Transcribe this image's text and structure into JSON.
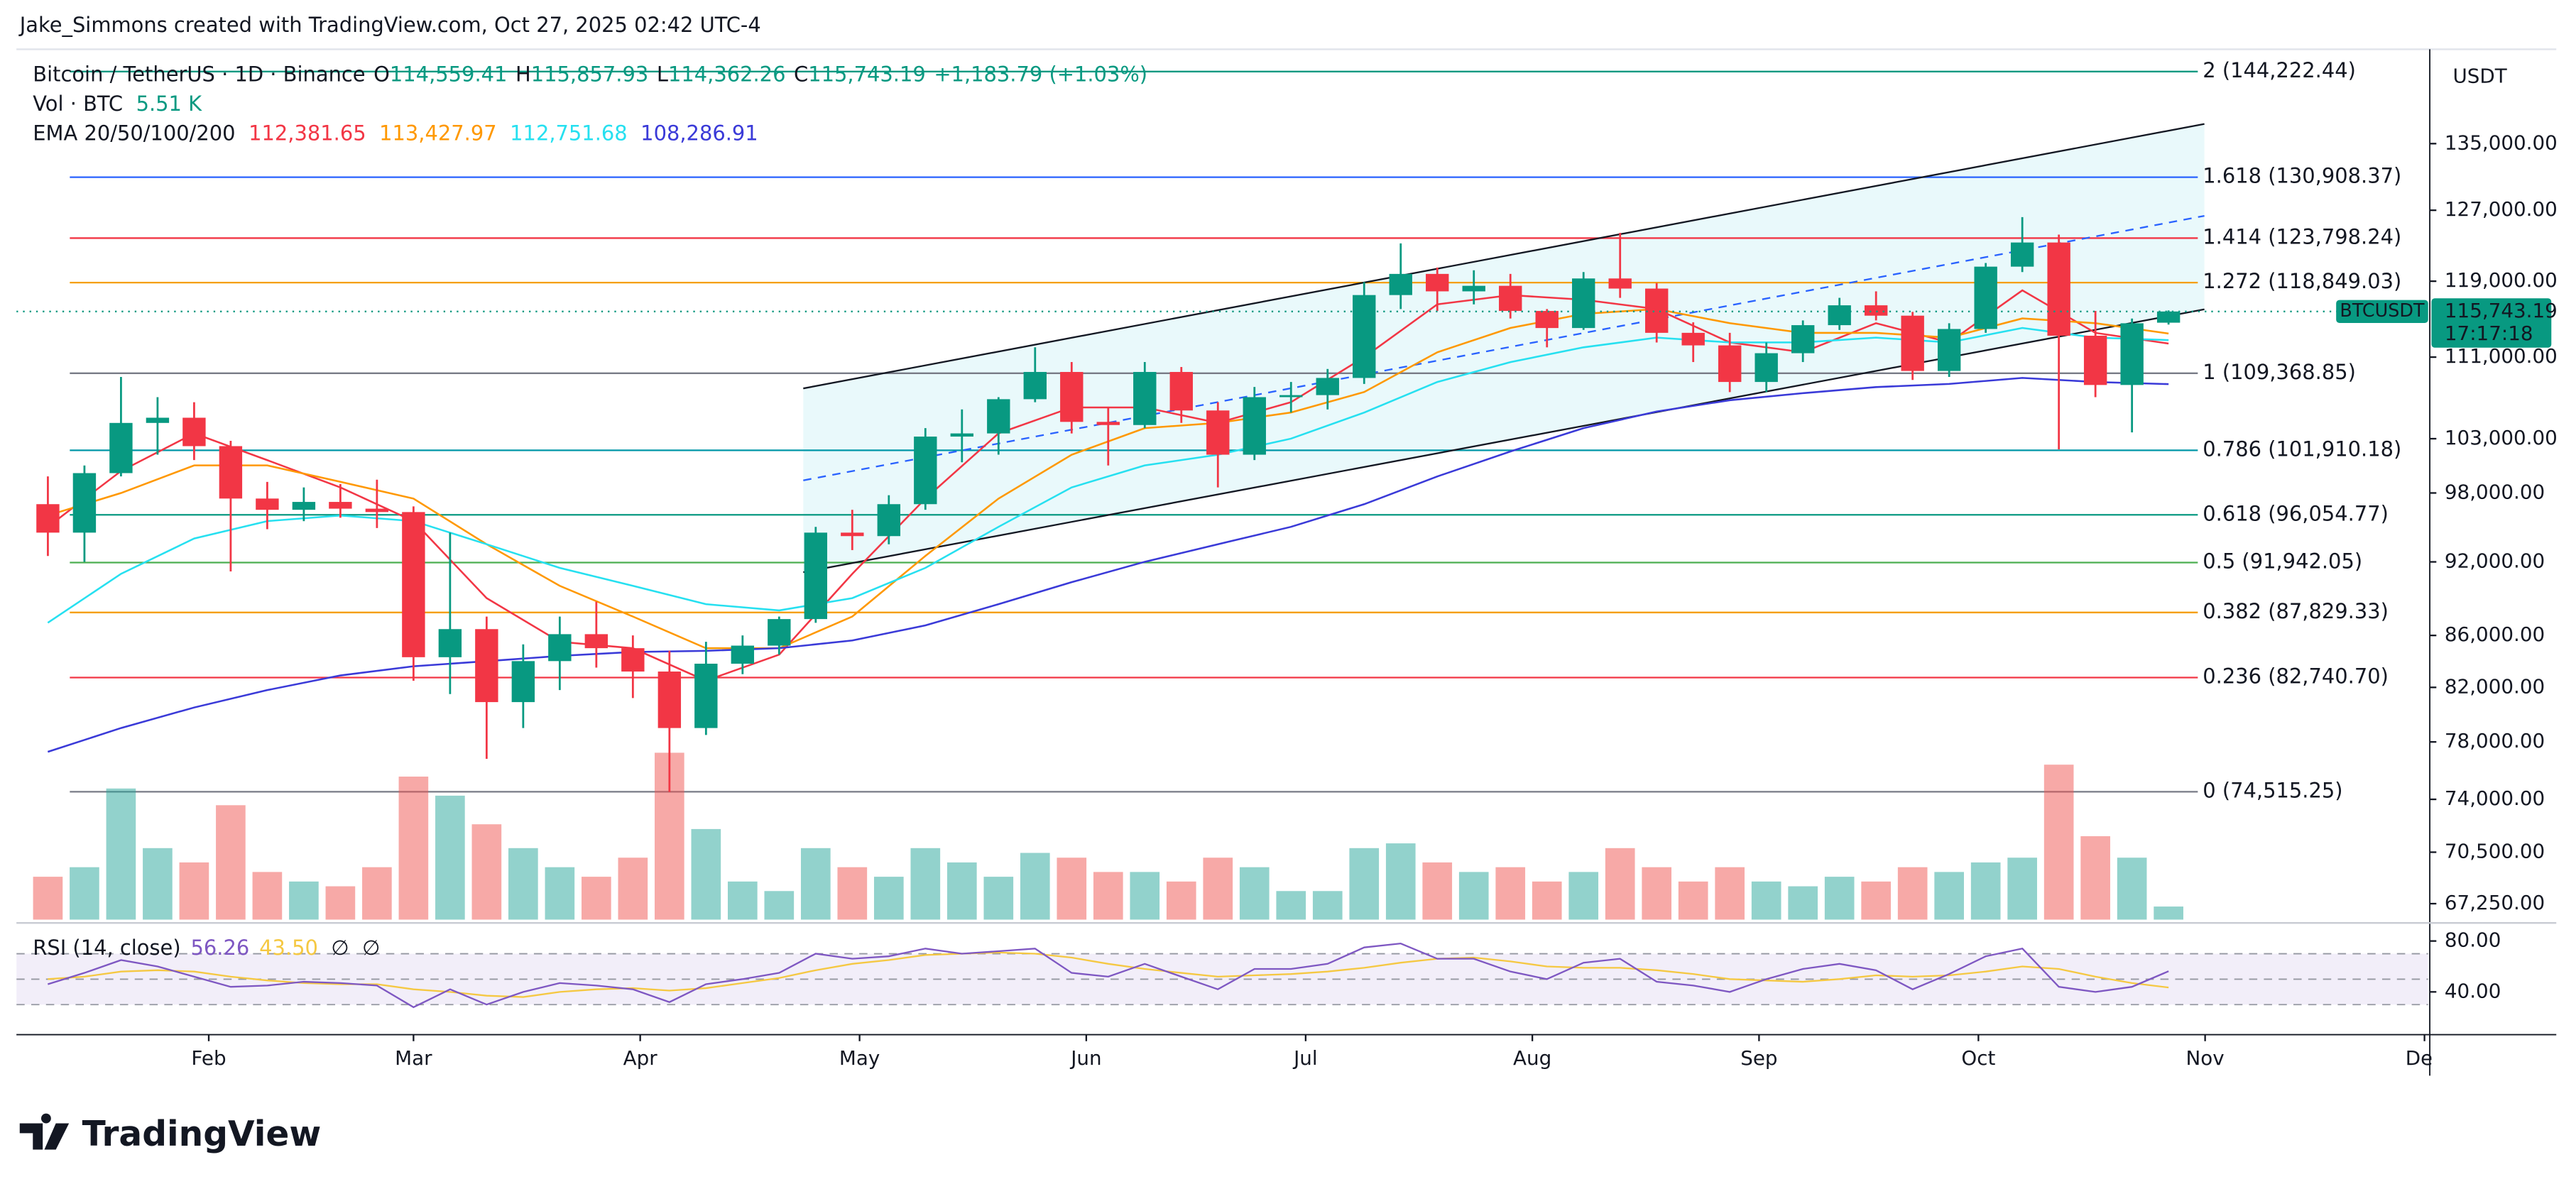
{
  "header": {
    "credit": "Jake_Simmons created with TradingView.com, Oct 27, 2025 02:42 UTC-4",
    "symbol": "Bitcoin / TetherUS · 1D · Binance",
    "ohlc": [
      {
        "key": "O",
        "value": 114559.41,
        "label": "114,559.41"
      },
      {
        "key": "H",
        "value": 115857.93,
        "label": "115,857.93"
      },
      {
        "key": "L",
        "value": 114362.26,
        "label": "114,362.26"
      },
      {
        "key": "C",
        "value": 115743.19,
        "label": "115,743.19"
      }
    ],
    "change": {
      "value": 1183.79,
      "label": "+1,183.79 (+1.03%)"
    },
    "volume": {
      "title": "Vol · BTC",
      "value": 5510,
      "label": "5.51 K"
    },
    "ema_title": "EMA 20/50/100/200"
  },
  "chart_data": {
    "type": "candlestick",
    "currency": "USDT",
    "x": [
      9,
      14,
      19,
      24,
      29,
      34,
      39,
      44,
      49,
      54,
      59,
      64,
      69,
      74,
      79,
      84,
      89,
      94,
      99,
      104,
      109,
      114,
      119,
      124,
      129,
      134,
      139,
      144,
      149,
      154,
      159,
      164,
      169,
      174,
      179,
      184,
      189,
      194,
      199,
      204,
      209,
      214,
      219,
      224,
      229,
      234,
      239,
      244,
      249,
      254,
      259,
      264,
      269,
      274,
      279,
      284,
      289,
      294,
      299
    ],
    "open": [
      97000,
      94500,
      99800,
      104500,
      105000,
      102300,
      97500,
      96500,
      97200,
      96600,
      96300,
      84300,
      86500,
      80900,
      84000,
      86100,
      85000,
      83200,
      79000,
      83800,
      85200,
      87300,
      94500,
      94200,
      97000,
      103200,
      103500,
      106800,
      109500,
      104600,
      104300,
      109500,
      105700,
      101500,
      107000,
      107200,
      108900,
      117500,
      119800,
      117900,
      118500,
      115800,
      114000,
      119300,
      118200,
      113500,
      112200,
      108500,
      111400,
      114300,
      116400,
      115300,
      109600,
      113900,
      120600,
      123300,
      113200,
      108200,
      114559.41
    ],
    "high": [
      99500,
      100500,
      109000,
      107000,
      106500,
      102800,
      99000,
      98500,
      98800,
      99200,
      96800,
      94500,
      87500,
      85300,
      87500,
      88700,
      86000,
      84800,
      85500,
      86000,
      87500,
      95000,
      96500,
      97800,
      104000,
      105800,
      107000,
      112000,
      110500,
      106000,
      110500,
      110000,
      106500,
      108000,
      108500,
      109800,
      118900,
      123200,
      120500,
      120200,
      119800,
      116000,
      120000,
      124400,
      118800,
      114600,
      113500,
      112500,
      114800,
      117200,
      117900,
      115700,
      114500,
      121000,
      126200,
      124200,
      115800,
      115000,
      115857.93
    ],
    "low": [
      92500,
      92000,
      99500,
      101500,
      101000,
      91200,
      94800,
      95500,
      95800,
      94900,
      82500,
      81500,
      76800,
      79000,
      81800,
      83500,
      81200,
      74500,
      78500,
      83000,
      84500,
      87000,
      93000,
      93500,
      96500,
      100800,
      101500,
      106500,
      103500,
      100500,
      104000,
      104500,
      98500,
      101000,
      105500,
      105800,
      108300,
      116000,
      115800,
      116500,
      115000,
      112000,
      113800,
      117200,
      112500,
      110500,
      107500,
      107500,
      110500,
      113800,
      114800,
      108700,
      109000,
      113500,
      120000,
      102000,
      107000,
      103600,
      114362.26
    ],
    "close": [
      94500,
      99800,
      104500,
      105000,
      102300,
      97500,
      96500,
      97200,
      96600,
      96300,
      84300,
      86500,
      80900,
      84000,
      86100,
      85000,
      83200,
      79000,
      83800,
      85200,
      87300,
      94500,
      94200,
      97000,
      103200,
      103500,
      106800,
      109500,
      104600,
      104300,
      109500,
      105700,
      101500,
      107000,
      107200,
      108900,
      117500,
      119800,
      117900,
      118500,
      115800,
      114000,
      119300,
      118200,
      113500,
      112200,
      108500,
      111400,
      114300,
      116400,
      115300,
      109600,
      113900,
      120600,
      123300,
      113200,
      108200,
      114500,
      115743.19
    ],
    "up_color": "#089981",
    "down_color": "#f23645",
    "ylim": [
      66270,
      147200
    ],
    "log_scale": true,
    "grid": false,
    "yticks": [
      {
        "value": 135000,
        "label": "135,000.00"
      },
      {
        "value": 127000,
        "label": "127,000.00"
      },
      {
        "value": 119000,
        "label": "119,000.00"
      },
      {
        "value": 111000,
        "label": "111,000.00"
      },
      {
        "value": 103000,
        "label": "103,000.00"
      },
      {
        "value": 98000,
        "label": "98,000.00"
      },
      {
        "value": 92000,
        "label": "92,000.00"
      },
      {
        "value": 86000,
        "label": "86,000.00"
      },
      {
        "value": 82000,
        "label": "82,000.00"
      },
      {
        "value": 78000,
        "label": "78,000.00"
      },
      {
        "value": 74000,
        "label": "74,000.00"
      },
      {
        "value": 70500,
        "label": "70,500.00"
      },
      {
        "value": 67250,
        "label": "67,250.00"
      }
    ],
    "xlim": [
      4.7,
      334.5
    ],
    "xticks": [
      {
        "value": 31,
        "label": "Feb"
      },
      {
        "value": 59,
        "label": "Mar"
      },
      {
        "value": 90,
        "label": "Apr"
      },
      {
        "value": 120,
        "label": "May"
      },
      {
        "value": 151,
        "label": "Jun"
      },
      {
        "value": 181,
        "label": "Jul"
      },
      {
        "value": 212,
        "label": "Aug"
      },
      {
        "value": 243,
        "label": "Sep"
      },
      {
        "value": 273,
        "label": "Oct"
      },
      {
        "value": 304,
        "label": "Nov"
      },
      {
        "value": 334,
        "label": "Dec"
      }
    ],
    "volume": {
      "y2lim": [
        0,
        365000
      ],
      "up_color": "#26a69a80",
      "down_color": "#ef535080",
      "values": [
        18000,
        22000,
        55000,
        30000,
        24000,
        48000,
        20000,
        16000,
        14000,
        22000,
        60000,
        52000,
        40000,
        30000,
        22000,
        18000,
        26000,
        70000,
        38000,
        16000,
        12000,
        30000,
        22000,
        18000,
        30000,
        24000,
        18000,
        28000,
        26000,
        20000,
        20000,
        16000,
        26000,
        22000,
        12000,
        12000,
        30000,
        32000,
        24000,
        20000,
        22000,
        16000,
        20000,
        30000,
        22000,
        16000,
        22000,
        16000,
        14000,
        18000,
        16000,
        22000,
        20000,
        24000,
        26000,
        65000,
        35000,
        26000,
        5510
      ]
    },
    "ema": {
      "x": [
        9,
        19,
        29,
        39,
        49,
        59,
        69,
        79,
        89,
        99,
        109,
        119,
        129,
        139,
        149,
        159,
        169,
        179,
        189,
        199,
        209,
        219,
        229,
        239,
        249,
        259,
        269,
        279,
        289,
        299
      ],
      "series": [
        {
          "color": "#f23645",
          "label": "112,381.65",
          "values": [
            95000,
            100000,
            103500,
            101000,
            98500,
            95500,
            89000,
            85500,
            85000,
            82500,
            84500,
            91000,
            97500,
            103500,
            106000,
            106000,
            104500,
            106500,
            111000,
            116500,
            117500,
            117000,
            116000,
            112500,
            111500,
            114500,
            112500,
            118000,
            113500,
            112381.65
          ]
        },
        {
          "color": "#ff9800",
          "label": "113,427.97",
          "values": [
            96000,
            98000,
            100500,
            100500,
            99000,
            97500,
            93500,
            90000,
            87500,
            85000,
            85000,
            87500,
            92500,
            97500,
            101500,
            104000,
            104500,
            105500,
            107500,
            111500,
            114000,
            115500,
            116000,
            114500,
            113500,
            113500,
            113000,
            115000,
            114500,
            113427.97
          ]
        },
        {
          "color": "#26e0f0",
          "label": "112,751.68",
          "values": [
            87000,
            91000,
            94000,
            95500,
            96000,
            95500,
            93500,
            91500,
            90000,
            88500,
            88000,
            89000,
            91500,
            95000,
            98500,
            100500,
            101500,
            103000,
            105500,
            108500,
            110500,
            112000,
            113000,
            112500,
            112500,
            113000,
            112500,
            114000,
            113000,
            112751.68
          ]
        },
        {
          "color": "#3a3ad8",
          "label": "108,286.91",
          "values": [
            77300,
            79000,
            80500,
            81800,
            82900,
            83600,
            84000,
            84400,
            84700,
            84800,
            85000,
            85600,
            86800,
            88500,
            90300,
            92000,
            93500,
            95000,
            97000,
            99500,
            101800,
            104000,
            105600,
            106700,
            107400,
            108000,
            108300,
            108900,
            108500,
            108286.91
          ]
        }
      ]
    },
    "fib": {
      "x": [
        12,
        303
      ],
      "levels": [
        {
          "value": 144222.44,
          "label": "2 (144,222.44)",
          "color": "#089981"
        },
        {
          "value": 130908.37,
          "label": "1.618 (130,908.37)",
          "color": "#2962ff"
        },
        {
          "value": 123798.24,
          "label": "1.414 (123,798.24)",
          "color": "#f23645"
        },
        {
          "value": 118849.03,
          "label": "1.272 (118,849.03)",
          "color": "#f59f00"
        },
        {
          "value": 109368.85,
          "label": "1 (109,368.85)",
          "color": "#787b86"
        },
        {
          "value": 101910.18,
          "label": "0.786 (101,910.18)",
          "color": "#0097a7"
        },
        {
          "value": 96054.77,
          "label": "0.618 (96,054.77)",
          "color": "#089981"
        },
        {
          "value": 91942.05,
          "label": "0.5 (91,942.05)",
          "color": "#4caf50"
        },
        {
          "value": 87829.33,
          "label": "0.382 (87,829.33)",
          "color": "#f59f00"
        },
        {
          "value": 82740.7,
          "label": "0.236 (82,740.70)",
          "color": "#f23645"
        },
        {
          "value": 74515.25,
          "label": "0 (74,515.25)",
          "color": "#787b86"
        }
      ]
    },
    "trendlines": [
      {
        "x": [
          112.3,
          303.9
        ],
        "y": [
          107860,
          137460
        ],
        "color": "#131722",
        "dashed": false
      },
      {
        "x": [
          112.3,
          303.9
        ],
        "y": [
          91130,
          115970
        ],
        "color": "#131722",
        "dashed": false
      },
      {
        "x": [
          112.3,
          303.9
        ],
        "y": [
          99140,
          126350
        ],
        "color": "#2962ff",
        "dashed": true
      }
    ],
    "channel_fill": "#e0f7fa",
    "last_price": {
      "symbol": "BTCUSDT",
      "value": 115743.19,
      "label": "115,743.19",
      "countdown": "17:17:18",
      "color": "#089981"
    },
    "rsi": {
      "title": "RSI (14, close)",
      "label": "56.26",
      "ma_label": "43.50",
      "extras": [
        "∅",
        "∅"
      ],
      "ylim": [
        7.7,
        92.9
      ],
      "bands": [
        70,
        50,
        30
      ],
      "yticks": [
        {
          "value": 80,
          "label": "80.00"
        },
        {
          "value": 40,
          "label": "40.00"
        }
      ],
      "color": "#7e57c2",
      "ma_color": "#f5c842",
      "values": [
        46,
        55,
        65,
        60,
        52,
        44,
        45,
        48,
        47,
        45,
        28,
        42,
        30,
        40,
        47,
        45,
        42,
        32,
        46,
        50,
        55,
        70,
        66,
        68,
        74,
        70,
        72,
        74,
        55,
        52,
        62,
        52,
        42,
        58,
        58,
        62,
        75,
        78,
        66,
        66,
        56,
        50,
        63,
        66,
        48,
        45,
        40,
        50,
        58,
        62,
        57,
        42,
        54,
        68,
        74,
        44,
        40,
        44,
        56.26
      ],
      "ma": [
        50,
        52,
        56,
        57,
        56,
        52,
        49,
        47,
        46,
        46,
        42,
        40,
        37,
        36,
        40,
        42,
        43,
        41,
        43,
        47,
        51,
        57,
        62,
        65,
        69,
        70,
        71,
        70,
        67,
        62,
        58,
        55,
        52,
        53,
        54,
        56,
        59,
        63,
        66,
        67,
        64,
        60,
        59,
        59,
        57,
        54,
        50,
        49,
        48,
        50,
        53,
        52,
        53,
        56,
        60,
        58,
        52,
        47,
        43.5
      ]
    }
  },
  "footer": {
    "logo": "TradingView"
  }
}
